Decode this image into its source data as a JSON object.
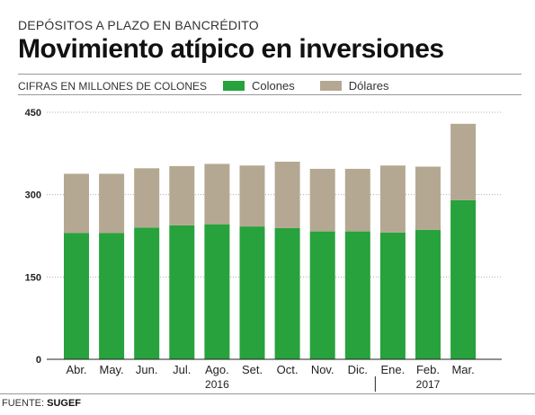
{
  "kicker": "DEPÓSITOS A PLAZO EN BANCRÉDITO",
  "title": "Movimiento atípico en inversiones",
  "subtitle": "CIFRAS EN MILLONES DE COLONES",
  "source": {
    "label": "FUENTE: ",
    "name": "SUGEF"
  },
  "colors": {
    "colones": "#27a23c",
    "dolares": "#b4a892",
    "grid": "#b0b0b0"
  },
  "chart_data": {
    "type": "bar",
    "stacked": true,
    "categories": [
      "Abr.",
      "May.",
      "Jun.",
      "Jul.",
      "Ago.",
      "Set.",
      "Oct.",
      "Nov.",
      "Dic.",
      "Ene.",
      "Feb.",
      "Mar."
    ],
    "year_groups": [
      {
        "label": "2016",
        "from": 0,
        "to": 8
      },
      {
        "label": "2017",
        "from": 9,
        "to": 11
      }
    ],
    "series": [
      {
        "name": "Colones",
        "values": [
          230,
          230,
          240,
          244,
          246,
          242,
          239,
          233,
          233,
          231,
          236,
          290
        ]
      },
      {
        "name": "Dólares",
        "values": [
          108,
          108,
          108,
          108,
          110,
          111,
          121,
          114,
          114,
          122,
          115,
          139
        ]
      }
    ],
    "ylim": [
      0,
      450
    ],
    "yticks": [
      0,
      150,
      300,
      450
    ],
    "grid": true,
    "legend": "top"
  }
}
